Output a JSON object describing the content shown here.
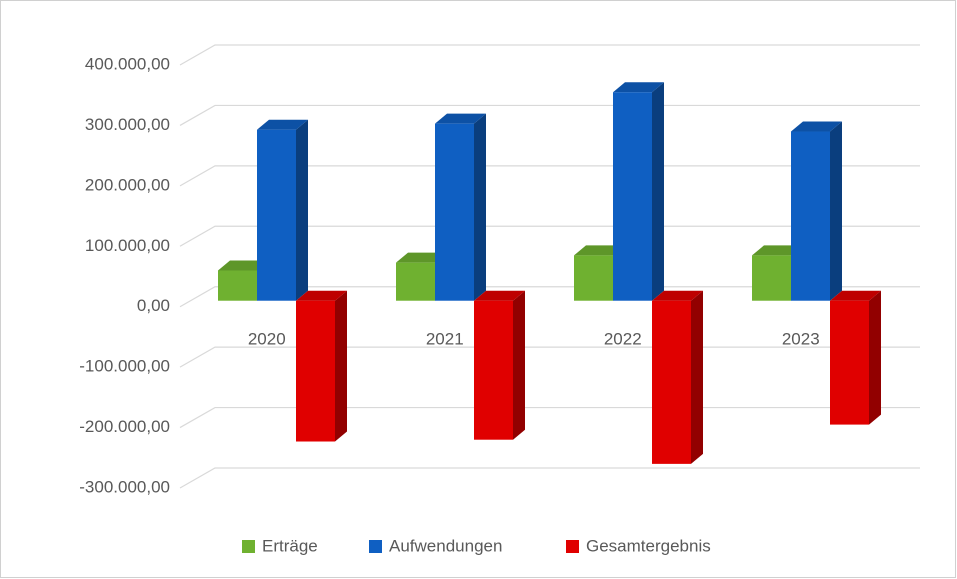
{
  "chart_data": {
    "type": "bar3d",
    "categories": [
      "2020",
      "2021",
      "2022",
      "2023"
    ],
    "series": [
      {
        "name": "Erträge",
        "color": "#6fb130",
        "values": [
          50000,
          63000,
          75000,
          75000
        ]
      },
      {
        "name": "Aufwendungen",
        "color": "#0f5fc2",
        "values": [
          283000,
          293000,
          345000,
          280000
        ]
      },
      {
        "name": "Gesamtergebnis",
        "color": "#e00000",
        "values": [
          -233000,
          -230000,
          -270000,
          -205000
        ]
      }
    ],
    "ylim": [
      -300000,
      400000
    ],
    "yticks": [
      {
        "value": -300000,
        "label": "-300.000,00"
      },
      {
        "value": -200000,
        "label": "-200.000,00"
      },
      {
        "value": -100000,
        "label": "-100.000,00"
      },
      {
        "value": 0,
        "label": "0,00"
      },
      {
        "value": 100000,
        "label": "100.000,00"
      },
      {
        "value": 200000,
        "label": "200.000,00"
      },
      {
        "value": 300000,
        "label": "300.000,00"
      },
      {
        "value": 400000,
        "label": "400.000,00"
      }
    ],
    "grid": true,
    "legend": "bottom"
  }
}
